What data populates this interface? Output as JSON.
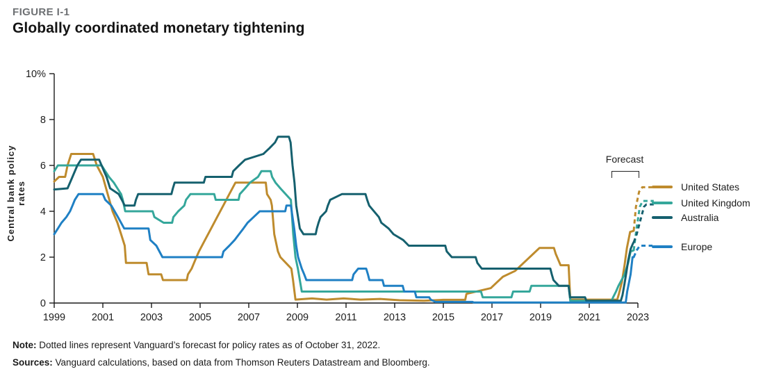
{
  "header": {
    "figure_label": "FIGURE I-1",
    "title": "Globally coordinated monetary tightening"
  },
  "notes": {
    "note_label": "Note:",
    "note_text": " Dotted lines represent Vanguard’s forecast for policy rates as of October 31, 2022.",
    "sources_label": "Sources:",
    "sources_text": " Vanguard calculations, based on data from Thomson Reuters Datastream and Bloomberg."
  },
  "chart_data": {
    "type": "line",
    "title": "Globally coordinated monetary tightening",
    "ylabel": "Central bank policy rates",
    "xlabel": "",
    "ylim": [
      0,
      10
    ],
    "xlim": [
      1999,
      2023.9
    ],
    "x_axis_end": 2023,
    "grid": false,
    "legend_position": "right",
    "forecast_label": "Forecast",
    "forecast_style": "dashed",
    "axis_color": "#1a1a1a",
    "y_ticks": [
      {
        "value": 0,
        "label": "0"
      },
      {
        "value": 2,
        "label": "2"
      },
      {
        "value": 4,
        "label": "4"
      },
      {
        "value": 6,
        "label": "6"
      },
      {
        "value": 8,
        "label": "8"
      },
      {
        "value": 10,
        "label": "10%"
      }
    ],
    "x_ticks": [
      {
        "value": 1999,
        "label": "1999"
      },
      {
        "value": 2001,
        "label": "2001"
      },
      {
        "value": 2003,
        "label": "2003"
      },
      {
        "value": 2005,
        "label": "2005"
      },
      {
        "value": 2007,
        "label": "2007"
      },
      {
        "value": 2009,
        "label": "2009"
      },
      {
        "value": 2011,
        "label": "2011"
      },
      {
        "value": 2013,
        "label": "2013"
      },
      {
        "value": 2015,
        "label": "2015"
      },
      {
        "value": 2017,
        "label": "2017"
      },
      {
        "value": 2019,
        "label": "2019"
      },
      {
        "value": 2021,
        "label": "2021"
      },
      {
        "value": 2023,
        "label": "2023"
      }
    ],
    "series": [
      {
        "name": "United States",
        "color": "#BE8B2D",
        "history": [
          [
            1999.0,
            5.3
          ],
          [
            1999.2,
            5.5
          ],
          [
            1999.45,
            5.5
          ],
          [
            1999.55,
            6.0
          ],
          [
            1999.7,
            6.5
          ],
          [
            2000.6,
            6.5
          ],
          [
            2000.75,
            6.0
          ],
          [
            2001.0,
            5.5
          ],
          [
            2001.2,
            4.75
          ],
          [
            2001.4,
            4.0
          ],
          [
            2001.6,
            3.5
          ],
          [
            2001.75,
            3.0
          ],
          [
            2001.9,
            2.5
          ],
          [
            2001.95,
            1.75
          ],
          [
            2002.8,
            1.75
          ],
          [
            2002.88,
            1.25
          ],
          [
            2003.4,
            1.25
          ],
          [
            2003.47,
            1.0
          ],
          [
            2004.45,
            1.0
          ],
          [
            2004.5,
            1.25
          ],
          [
            2004.65,
            1.5
          ],
          [
            2004.85,
            2.0
          ],
          [
            2004.95,
            2.25
          ],
          [
            2005.2,
            2.75
          ],
          [
            2005.45,
            3.25
          ],
          [
            2005.7,
            3.75
          ],
          [
            2005.95,
            4.25
          ],
          [
            2006.2,
            4.75
          ],
          [
            2006.45,
            5.25
          ],
          [
            2007.7,
            5.25
          ],
          [
            2007.75,
            4.75
          ],
          [
            2007.9,
            4.5
          ],
          [
            2007.95,
            4.25
          ],
          [
            2008.05,
            3.0
          ],
          [
            2008.2,
            2.25
          ],
          [
            2008.3,
            2.0
          ],
          [
            2008.75,
            1.5
          ],
          [
            2008.82,
            1.0
          ],
          [
            2008.92,
            0.15
          ],
          [
            2009.6,
            0.2
          ],
          [
            2010.2,
            0.15
          ],
          [
            2010.9,
            0.2
          ],
          [
            2011.6,
            0.15
          ],
          [
            2012.4,
            0.18
          ],
          [
            2013.2,
            0.12
          ],
          [
            2014.2,
            0.1
          ],
          [
            2015.0,
            0.14
          ],
          [
            2015.9,
            0.14
          ],
          [
            2015.95,
            0.4
          ],
          [
            2016.95,
            0.65
          ],
          [
            2017.2,
            0.9
          ],
          [
            2017.45,
            1.15
          ],
          [
            2017.95,
            1.4
          ],
          [
            2018.2,
            1.65
          ],
          [
            2018.45,
            1.9
          ],
          [
            2018.7,
            2.15
          ],
          [
            2018.95,
            2.4
          ],
          [
            2019.55,
            2.4
          ],
          [
            2019.62,
            2.15
          ],
          [
            2019.72,
            1.9
          ],
          [
            2019.82,
            1.65
          ],
          [
            2020.15,
            1.65
          ],
          [
            2020.22,
            0.15
          ],
          [
            2022.15,
            0.15
          ],
          [
            2022.22,
            0.4
          ],
          [
            2022.34,
            0.9
          ],
          [
            2022.45,
            1.65
          ],
          [
            2022.55,
            2.4
          ],
          [
            2022.68,
            3.1
          ],
          [
            2022.83,
            3.15
          ]
        ],
        "forecast": [
          [
            2022.83,
            3.15
          ],
          [
            2022.92,
            4.2
          ],
          [
            2023.05,
            4.85
          ],
          [
            2023.18,
            5.05
          ],
          [
            2023.7,
            5.05
          ]
        ]
      },
      {
        "name": "United Kingdom",
        "color": "#35A79B",
        "history": [
          [
            1999.0,
            5.75
          ],
          [
            1999.15,
            6.0
          ],
          [
            2000.95,
            6.0
          ],
          [
            2001.1,
            5.75
          ],
          [
            2001.25,
            5.5
          ],
          [
            2001.45,
            5.25
          ],
          [
            2001.6,
            5.0
          ],
          [
            2001.75,
            4.75
          ],
          [
            2001.82,
            4.5
          ],
          [
            2001.92,
            4.0
          ],
          [
            2003.05,
            4.0
          ],
          [
            2003.12,
            3.75
          ],
          [
            2003.5,
            3.5
          ],
          [
            2003.85,
            3.5
          ],
          [
            2003.9,
            3.75
          ],
          [
            2004.1,
            4.0
          ],
          [
            2004.35,
            4.25
          ],
          [
            2004.42,
            4.5
          ],
          [
            2004.6,
            4.75
          ],
          [
            2005.58,
            4.75
          ],
          [
            2005.64,
            4.5
          ],
          [
            2006.58,
            4.5
          ],
          [
            2006.63,
            4.75
          ],
          [
            2006.85,
            5.0
          ],
          [
            2007.05,
            5.25
          ],
          [
            2007.38,
            5.5
          ],
          [
            2007.52,
            5.75
          ],
          [
            2007.9,
            5.75
          ],
          [
            2007.96,
            5.5
          ],
          [
            2008.1,
            5.25
          ],
          [
            2008.3,
            5.0
          ],
          [
            2008.73,
            4.5
          ],
          [
            2008.83,
            3.0
          ],
          [
            2008.92,
            2.0
          ],
          [
            2009.02,
            1.5
          ],
          [
            2009.1,
            1.0
          ],
          [
            2009.18,
            0.5
          ],
          [
            2016.55,
            0.5
          ],
          [
            2016.62,
            0.25
          ],
          [
            2017.8,
            0.25
          ],
          [
            2017.87,
            0.5
          ],
          [
            2018.55,
            0.5
          ],
          [
            2018.62,
            0.75
          ],
          [
            2020.15,
            0.75
          ],
          [
            2020.22,
            0.1
          ],
          [
            2021.92,
            0.1
          ],
          [
            2021.98,
            0.25
          ],
          [
            2022.1,
            0.5
          ],
          [
            2022.2,
            0.75
          ],
          [
            2022.33,
            1.0
          ],
          [
            2022.45,
            1.25
          ],
          [
            2022.6,
            1.75
          ],
          [
            2022.7,
            2.25
          ],
          [
            2022.83,
            2.3
          ]
        ],
        "forecast": [
          [
            2022.83,
            2.3
          ],
          [
            2022.95,
            3.3
          ],
          [
            2023.08,
            4.2
          ],
          [
            2023.2,
            4.45
          ],
          [
            2023.65,
            4.45
          ]
        ]
      },
      {
        "name": "Australia",
        "color": "#15606E",
        "history": [
          [
            1999.0,
            4.95
          ],
          [
            1999.55,
            5.0
          ],
          [
            1999.75,
            5.5
          ],
          [
            1999.95,
            6.0
          ],
          [
            2000.1,
            6.25
          ],
          [
            2000.85,
            6.25
          ],
          [
            2001.05,
            5.75
          ],
          [
            2001.15,
            5.5
          ],
          [
            2001.3,
            5.0
          ],
          [
            2001.65,
            4.75
          ],
          [
            2001.78,
            4.5
          ],
          [
            2001.9,
            4.25
          ],
          [
            2002.3,
            4.25
          ],
          [
            2002.36,
            4.5
          ],
          [
            2002.45,
            4.75
          ],
          [
            2003.82,
            4.75
          ],
          [
            2003.88,
            5.0
          ],
          [
            2003.95,
            5.25
          ],
          [
            2005.15,
            5.25
          ],
          [
            2005.22,
            5.5
          ],
          [
            2006.3,
            5.5
          ],
          [
            2006.36,
            5.75
          ],
          [
            2006.6,
            6.0
          ],
          [
            2006.85,
            6.25
          ],
          [
            2007.6,
            6.5
          ],
          [
            2007.85,
            6.75
          ],
          [
            2008.08,
            7.0
          ],
          [
            2008.2,
            7.25
          ],
          [
            2008.65,
            7.25
          ],
          [
            2008.72,
            7.0
          ],
          [
            2008.8,
            6.0
          ],
          [
            2008.88,
            5.25
          ],
          [
            2008.95,
            4.25
          ],
          [
            2009.1,
            3.25
          ],
          [
            2009.25,
            3.0
          ],
          [
            2009.75,
            3.0
          ],
          [
            2009.8,
            3.25
          ],
          [
            2009.87,
            3.5
          ],
          [
            2009.95,
            3.75
          ],
          [
            2010.18,
            4.0
          ],
          [
            2010.25,
            4.25
          ],
          [
            2010.35,
            4.5
          ],
          [
            2010.83,
            4.75
          ],
          [
            2011.8,
            4.75
          ],
          [
            2011.87,
            4.5
          ],
          [
            2011.95,
            4.25
          ],
          [
            2012.35,
            3.75
          ],
          [
            2012.45,
            3.5
          ],
          [
            2012.75,
            3.25
          ],
          [
            2012.95,
            3.0
          ],
          [
            2013.35,
            2.75
          ],
          [
            2013.58,
            2.5
          ],
          [
            2015.08,
            2.5
          ],
          [
            2015.14,
            2.25
          ],
          [
            2015.35,
            2.0
          ],
          [
            2016.33,
            2.0
          ],
          [
            2016.4,
            1.75
          ],
          [
            2016.58,
            1.5
          ],
          [
            2019.4,
            1.5
          ],
          [
            2019.46,
            1.25
          ],
          [
            2019.53,
            1.0
          ],
          [
            2019.75,
            0.75
          ],
          [
            2020.15,
            0.75
          ],
          [
            2020.21,
            0.25
          ],
          [
            2020.83,
            0.25
          ],
          [
            2020.88,
            0.1
          ],
          [
            2022.3,
            0.1
          ],
          [
            2022.37,
            0.35
          ],
          [
            2022.45,
            0.85
          ],
          [
            2022.53,
            1.35
          ],
          [
            2022.6,
            1.85
          ],
          [
            2022.7,
            2.35
          ],
          [
            2022.8,
            2.6
          ],
          [
            2022.83,
            2.65
          ]
        ],
        "forecast": [
          [
            2022.83,
            2.65
          ],
          [
            2022.95,
            3.0
          ],
          [
            2023.1,
            3.6
          ],
          [
            2023.25,
            4.2
          ],
          [
            2023.35,
            4.3
          ],
          [
            2023.65,
            4.3
          ]
        ]
      },
      {
        "name": "Europe",
        "color": "#1F80C4",
        "history": [
          [
            1999.0,
            3.0
          ],
          [
            1999.15,
            3.25
          ],
          [
            1999.3,
            3.5
          ],
          [
            1999.5,
            3.75
          ],
          [
            1999.65,
            4.0
          ],
          [
            1999.75,
            4.25
          ],
          [
            1999.85,
            4.5
          ],
          [
            2000.0,
            4.75
          ],
          [
            2001.0,
            4.75
          ],
          [
            2001.1,
            4.5
          ],
          [
            2001.35,
            4.25
          ],
          [
            2001.62,
            3.75
          ],
          [
            2001.88,
            3.25
          ],
          [
            2002.88,
            3.25
          ],
          [
            2002.95,
            2.75
          ],
          [
            2003.2,
            2.5
          ],
          [
            2003.45,
            2.0
          ],
          [
            2005.9,
            2.0
          ],
          [
            2005.96,
            2.25
          ],
          [
            2006.2,
            2.5
          ],
          [
            2006.42,
            2.75
          ],
          [
            2006.6,
            3.0
          ],
          [
            2006.78,
            3.25
          ],
          [
            2006.95,
            3.5
          ],
          [
            2007.2,
            3.75
          ],
          [
            2007.45,
            4.0
          ],
          [
            2008.5,
            4.0
          ],
          [
            2008.55,
            4.25
          ],
          [
            2008.73,
            4.25
          ],
          [
            2008.8,
            3.75
          ],
          [
            2008.87,
            3.25
          ],
          [
            2008.95,
            2.5
          ],
          [
            2009.03,
            2.0
          ],
          [
            2009.18,
            1.5
          ],
          [
            2009.28,
            1.25
          ],
          [
            2009.37,
            1.0
          ],
          [
            2011.25,
            1.0
          ],
          [
            2011.31,
            1.25
          ],
          [
            2011.5,
            1.5
          ],
          [
            2011.83,
            1.5
          ],
          [
            2011.9,
            1.25
          ],
          [
            2011.96,
            1.0
          ],
          [
            2012.5,
            1.0
          ],
          [
            2012.56,
            0.75
          ],
          [
            2013.33,
            0.75
          ],
          [
            2013.39,
            0.5
          ],
          [
            2013.83,
            0.5
          ],
          [
            2013.89,
            0.25
          ],
          [
            2014.42,
            0.25
          ],
          [
            2014.48,
            0.15
          ],
          [
            2014.68,
            0.05
          ],
          [
            2016.2,
            0.05
          ],
          [
            2016.25,
            0.02
          ],
          [
            2022.5,
            0.02
          ],
          [
            2022.56,
            0.5
          ],
          [
            2022.7,
            1.25
          ],
          [
            2022.78,
            2.0
          ],
          [
            2022.83,
            2.0
          ]
        ],
        "forecast": [
          [
            2022.83,
            2.0
          ],
          [
            2022.95,
            2.3
          ],
          [
            2023.08,
            2.5
          ],
          [
            2023.6,
            2.5
          ]
        ]
      }
    ]
  }
}
